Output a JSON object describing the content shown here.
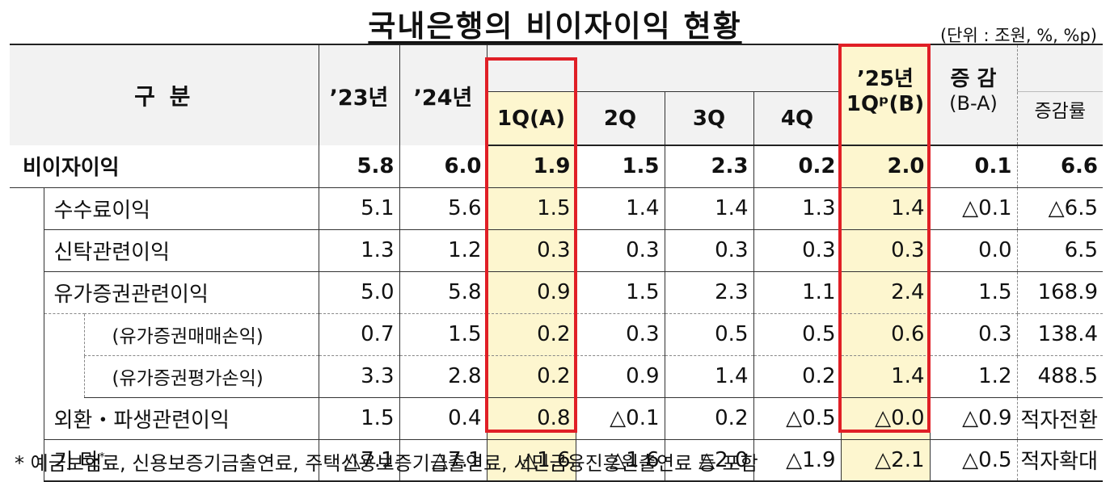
{
  "title": "국내은행의 비이자이익 현황",
  "unit": "(단위 : 조원, %, %p)",
  "header": {
    "category": "구  분",
    "y2023": "’23년",
    "y2024": "’24년",
    "q1": "1Q(A)",
    "q2": "2Q",
    "q3": "3Q",
    "q4": "4Q",
    "y2025_line1": "’25년",
    "y2025_line2": "1Qᵖ(B)",
    "change_line1": "증  감",
    "change_line2": "(B-A)",
    "change_rate": "증감률"
  },
  "rows": [
    {
      "label": "비이자이익",
      "values": [
        "5.8",
        "6.0",
        "1.9",
        "1.5",
        "2.3",
        "0.2",
        "2.0",
        "0.1",
        "6.6"
      ]
    },
    {
      "label": "수수료이익",
      "values": [
        "5.1",
        "5.6",
        "1.5",
        "1.4",
        "1.4",
        "1.3",
        "1.4",
        "△0.1",
        "△6.5"
      ]
    },
    {
      "label": "신탁관련이익",
      "values": [
        "1.3",
        "1.2",
        "0.3",
        "0.3",
        "0.3",
        "0.3",
        "0.3",
        "0.0",
        "6.5"
      ]
    },
    {
      "label": "유가증권관련이익",
      "values": [
        "5.0",
        "5.8",
        "0.9",
        "1.5",
        "2.3",
        "1.1",
        "2.4",
        "1.5",
        "168.9"
      ]
    },
    {
      "label": "(유가증권매매손익)",
      "values": [
        "0.7",
        "1.5",
        "0.2",
        "0.3",
        "0.5",
        "0.5",
        "0.6",
        "0.3",
        "138.4"
      ]
    },
    {
      "label": "(유가증권평가손익)",
      "values": [
        "3.3",
        "2.8",
        "0.2",
        "0.9",
        "1.4",
        "0.2",
        "1.4",
        "1.2",
        "488.5"
      ]
    },
    {
      "label": "외환・파생관련이익",
      "values": [
        "1.5",
        "0.4",
        "0.8",
        "△0.1",
        "0.2",
        "△0.5",
        "△0.0",
        "△0.9",
        "적자전환"
      ]
    },
    {
      "label": "기    타",
      "label_sup": "*",
      "values": [
        "△7.1",
        "△7.1",
        "△1.6",
        "△1.6",
        "△2.0",
        "△1.9",
        "△2.1",
        "△0.5",
        "적자확대"
      ]
    }
  ],
  "footnote": "* 예금보험료, 신용보증기금출연료, 주택신용보증기금출연료, 서민금융진흥원출연료 등 포함",
  "colors": {
    "highlight_border": "#e01f26",
    "highlight_fill": "#fdf6cf",
    "header_fill": "#f2f2f2"
  }
}
